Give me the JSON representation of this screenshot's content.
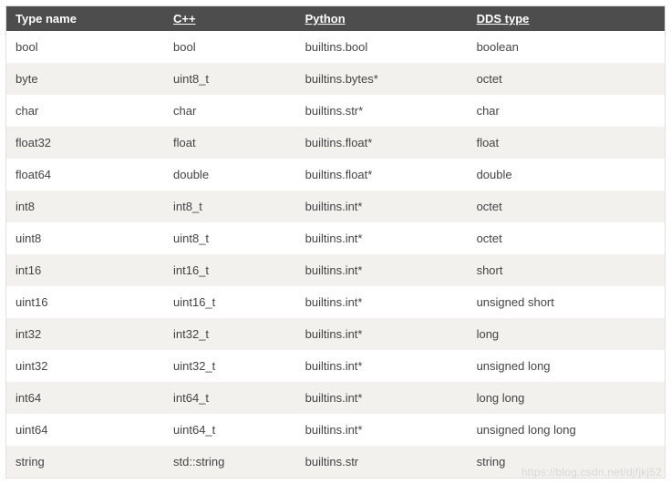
{
  "table": {
    "headers": [
      {
        "label": "Type name",
        "underline": false
      },
      {
        "label": "C++",
        "underline": true
      },
      {
        "label": "Python",
        "underline": true
      },
      {
        "label": "DDS type",
        "underline": true
      }
    ],
    "rows": [
      [
        "bool",
        "bool",
        "builtins.bool",
        "boolean"
      ],
      [
        "byte",
        "uint8_t",
        "builtins.bytes*",
        "octet"
      ],
      [
        "char",
        "char",
        "builtins.str*",
        "char"
      ],
      [
        "float32",
        "float",
        "builtins.float*",
        "float"
      ],
      [
        "float64",
        "double",
        "builtins.float*",
        "double"
      ],
      [
        "int8",
        "int8_t",
        "builtins.int*",
        "octet"
      ],
      [
        "uint8",
        "uint8_t",
        "builtins.int*",
        "octet"
      ],
      [
        "int16",
        "int16_t",
        "builtins.int*",
        "short"
      ],
      [
        "uint16",
        "uint16_t",
        "builtins.int*",
        "unsigned short"
      ],
      [
        "int32",
        "int32_t",
        "builtins.int*",
        "long"
      ],
      [
        "uint32",
        "uint32_t",
        "builtins.int*",
        "unsigned long"
      ],
      [
        "int64",
        "int64_t",
        "builtins.int*",
        "long long"
      ],
      [
        "uint64",
        "uint64_t",
        "builtins.int*",
        "unsigned long long"
      ],
      [
        "string",
        "std::string",
        "builtins.str",
        "string"
      ]
    ]
  },
  "watermark": "https://blog.csdn.net/djfjkj52"
}
